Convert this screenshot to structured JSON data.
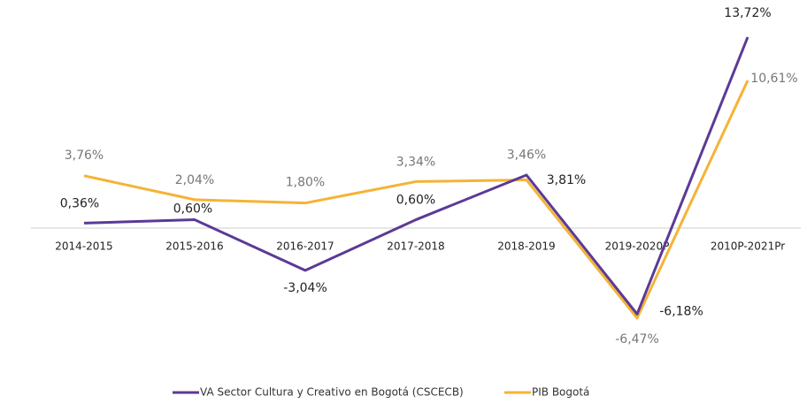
{
  "chart_data": {
    "type": "line",
    "categories": [
      "2014-2015",
      "2015-2016",
      "2016-2017",
      "2017-2018",
      "2018-2019",
      "2019-2020P",
      "2010P-2021Pr"
    ],
    "series": [
      {
        "name": "VA Sector Cultura y Creativo en Bogotá (CSCECB)",
        "color": "#5b3a96",
        "values": [
          0.36,
          0.6,
          -3.04,
          0.6,
          3.81,
          -6.18,
          13.72
        ],
        "value_labels": [
          "0,36%",
          "0,60%",
          "-3,04%",
          "0,60%",
          "3,81%",
          "-6,18%",
          "13,72%"
        ]
      },
      {
        "name": "PIB Bogotá",
        "color": "#f5b335",
        "values": [
          3.76,
          2.04,
          1.8,
          3.34,
          3.46,
          -6.47,
          10.61
        ],
        "value_labels": [
          "3,76%",
          "2,04%",
          "1,80%",
          "3,34%",
          "3,46%",
          "-6,47%",
          "10,61%"
        ]
      }
    ],
    "legend": "bottom"
  }
}
